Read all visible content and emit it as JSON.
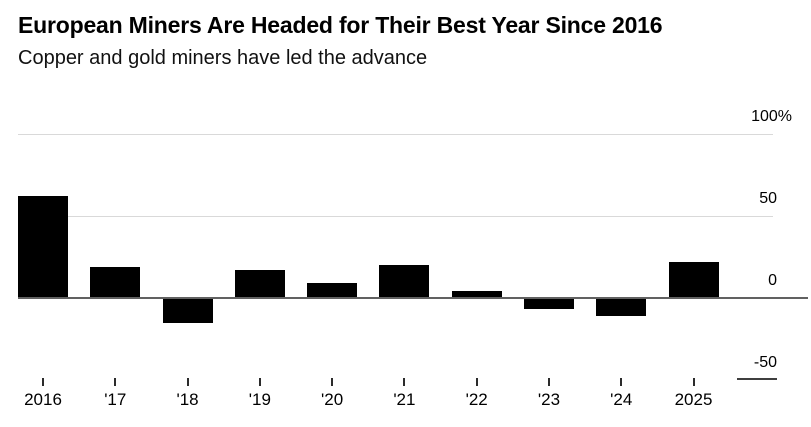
{
  "header": {
    "title": "European Miners Are Headed for Their Best Year Since 2016",
    "subtitle": "Copper and gold miners have led the advance"
  },
  "chart_data": {
    "type": "bar",
    "title": "European Miners Are Headed for Their Best Year Since 2016",
    "subtitle": "Copper and gold miners have led the advance",
    "categories": [
      "2016",
      "'17",
      "'18",
      "'19",
      "'20",
      "'21",
      "'22",
      "'23",
      "'24",
      "2025"
    ],
    "values": [
      62,
      19,
      -15,
      17,
      9,
      20,
      4.5,
      -6.5,
      -11,
      22
    ],
    "unit": "%",
    "xlabel": "",
    "ylabel": "",
    "ylim": [
      -50,
      100
    ],
    "yticks": [
      {
        "value": 100,
        "label": "100%"
      },
      {
        "value": 50,
        "label": "50"
      },
      {
        "value": 0,
        "label": "0"
      },
      {
        "value": -50,
        "label": "-50"
      }
    ],
    "grid": true,
    "legend_position": "none",
    "colors": {
      "bar": "#000000",
      "gridline": "#d9d9d9",
      "zero_line": "#616161",
      "background": "#ffffff",
      "text": "#000000"
    }
  }
}
